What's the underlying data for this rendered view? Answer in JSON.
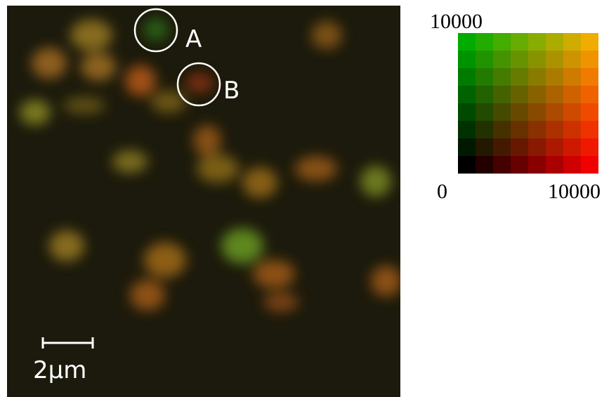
{
  "image": {
    "markers": [
      {
        "label": "A"
      },
      {
        "label": "B"
      }
    ],
    "scale_bar": {
      "label": "2μm"
    }
  },
  "colorbar": {
    "y_max": 10000,
    "x_min": 0,
    "x_max": 10000
  }
}
